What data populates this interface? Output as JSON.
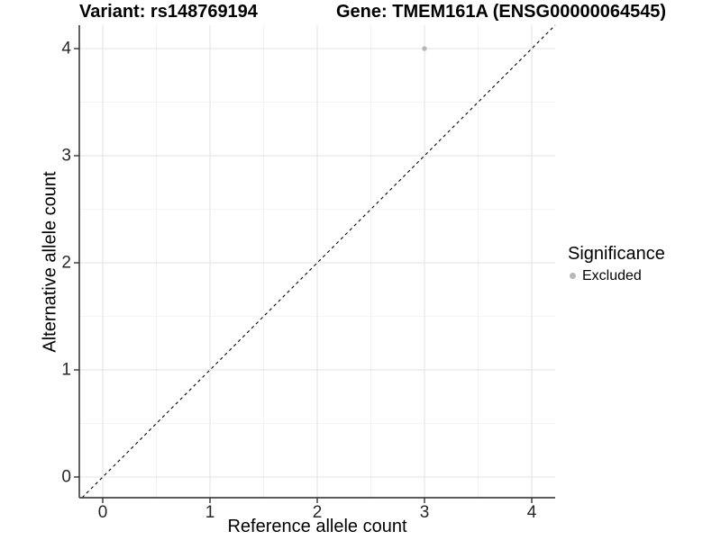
{
  "chart_data": {
    "type": "scatter",
    "title_left": "Variant: rs148769194",
    "title_right": "Gene: TMEM161A (ENSG00000064545)",
    "xlabel": "Reference allele count",
    "ylabel": "Alternative allele count",
    "x_ticks": [
      0,
      1,
      2,
      3,
      4
    ],
    "y_ticks": [
      0,
      1,
      2,
      3,
      4
    ],
    "xlim": [
      -0.2,
      4.2
    ],
    "ylim": [
      -0.2,
      4.2
    ],
    "grid": "major and minor gridlines, white panel background",
    "points": [
      {
        "x": 3,
        "y": 4,
        "series": "Excluded"
      }
    ],
    "point_color": "#b7b7b7",
    "point_radius": 2.7,
    "reference_line": {
      "type": "identity y = x",
      "style": "dashed",
      "color": "#000000"
    },
    "legend": {
      "position": "right",
      "title": "Significance",
      "items": [
        {
          "label": "Excluded",
          "color": "#b7b7b7",
          "marker": "circle"
        }
      ]
    }
  }
}
